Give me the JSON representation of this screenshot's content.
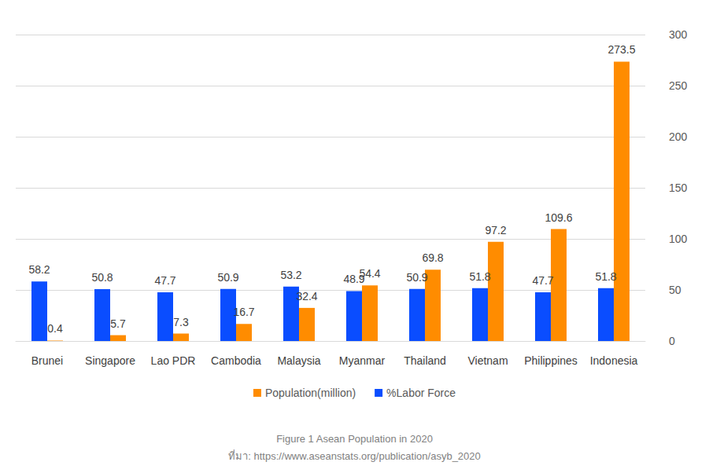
{
  "chart_data": {
    "type": "bar",
    "title": "Figure 1 Asean Population in 2020",
    "subtitle": "ที่มา: https://www.aseanstats.org/publication/asyb_2020",
    "categories": [
      "Brunei",
      "Singapore",
      "Lao PDR",
      "Cambodia",
      "Malaysia",
      "Myanmar",
      "Thailand",
      "Vietnam",
      "Philippines",
      "Indonesia"
    ],
    "series": [
      {
        "name": "%Labor Force",
        "color": "#0a4dff",
        "values": [
          58.2,
          50.8,
          47.7,
          50.9,
          53.2,
          48.9,
          50.9,
          51.8,
          47.7,
          51.8
        ]
      },
      {
        "name": "Population(million)",
        "color": "#ff8c00",
        "values": [
          0.4,
          5.7,
          7.3,
          16.7,
          32.4,
          54.4,
          69.8,
          97.2,
          109.6,
          273.5
        ]
      }
    ],
    "ylim": [
      0,
      300
    ],
    "yticks": [
      0,
      50,
      100,
      150,
      200,
      250,
      300
    ],
    "grid": true,
    "legend": "bottom",
    "data_labels": true
  }
}
